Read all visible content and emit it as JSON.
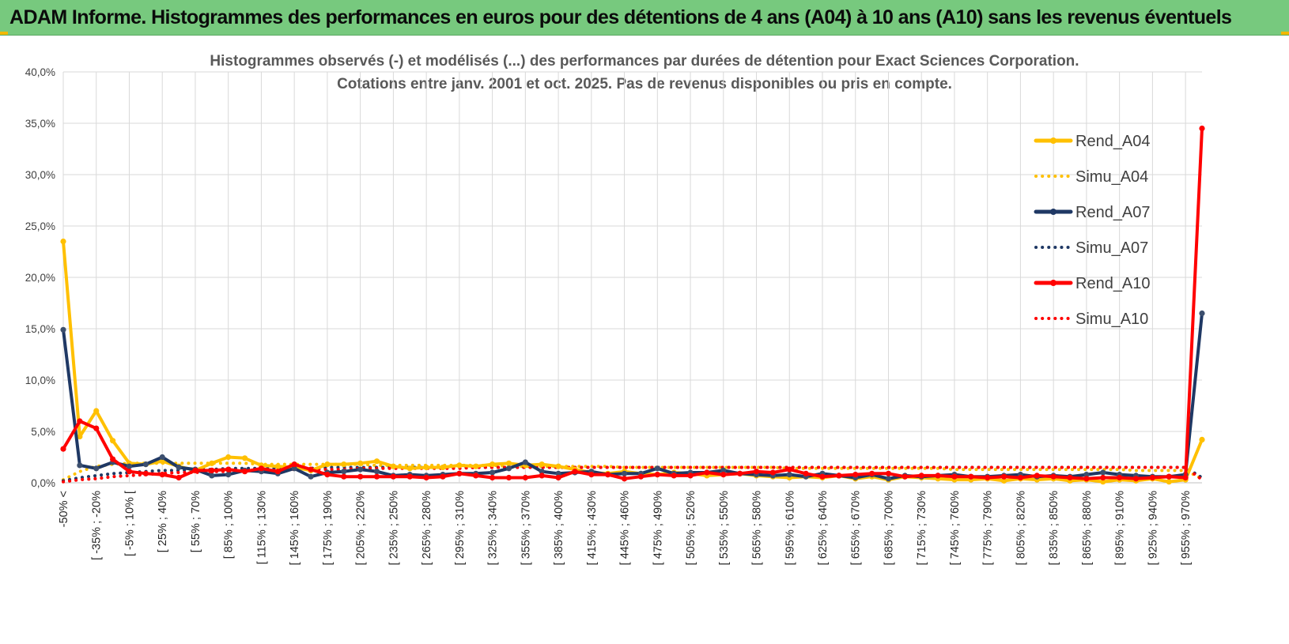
{
  "header": {
    "title": "ADAM Informe. Histogrammes des performances en euros pour des détentions de 4 ans (A04) à 10 ans (A10) sans les revenus éventuels"
  },
  "colors": {
    "banner": "#77c97e",
    "gold": "#ffc000",
    "navy": "#1f3864",
    "red": "#ff0000",
    "grid": "#d9d9d9"
  },
  "chart_data": {
    "type": "line",
    "title": "Histogrammes observés (-) et modélisés (...) des performances par durées de détention pour Exact Sciences Corporation.",
    "subtitle": "Cotations entre janv. 2001 et oct. 2025. Pas de revenus disponibles ou pris en compte.",
    "xlabel": "",
    "ylabel": "",
    "ylim": [
      0,
      40
    ],
    "y_ticks": [
      "0,0%",
      "5,0%",
      "10,0%",
      "15,0%",
      "20,0%",
      "25,0%",
      "30,0%",
      "35,0%",
      "40,0%"
    ],
    "y_unit": "%",
    "grid": true,
    "legend_position": "right",
    "x_tick_labels": [
      "-50% <",
      "[ -35% ; -20%",
      "[ -5% ; 10% [",
      "[ 25% ; 40%",
      "[ 55% ; 70%",
      "[ 85% ; 100%",
      "[ 115% ; 130%",
      "[ 145% ; 160%",
      "[ 175% ; 190%",
      "[ 205% ; 220%",
      "[ 235% ; 250%",
      "[ 265% ; 280%",
      "[ 295% ; 310%",
      "[ 325% ; 340%",
      "[ 355% ; 370%",
      "[ 385% ; 400%",
      "[ 415% ; 430%",
      "[ 445% ; 460%",
      "[ 475% ; 490%",
      "[ 505% ; 520%",
      "[ 535% ; 550%",
      "[ 565% ; 580%",
      "[ 595% ; 610%",
      "[ 625% ; 640%",
      "[ 655% ; 670%",
      "[ 685% ; 700%",
      "[ 715% ; 730%",
      "[ 745% ; 760%",
      "[ 775% ; 790%",
      "[ 805% ; 820%",
      "[ 835% ; 850%",
      "[ 865% ; 880%",
      "[ 895% ; 910%",
      "[ 925% ; 940%",
      "[ 955% ; 970%"
    ],
    "n_points": 70,
    "series": [
      {
        "name": "Rend_A04",
        "style": "solid",
        "color": "#ffc000",
        "markers": true,
        "values": [
          23.5,
          4.5,
          7.0,
          4.1,
          1.9,
          1.8,
          2.1,
          1.6,
          1.2,
          1.9,
          2.5,
          2.4,
          1.7,
          1.6,
          1.5,
          1.2,
          1.8,
          1.8,
          1.9,
          2.1,
          1.6,
          1.4,
          1.5,
          1.5,
          1.7,
          1.6,
          1.8,
          1.9,
          1.7,
          1.8,
          1.6,
          1.3,
          1.0,
          0.9,
          1.1,
          0.9,
          0.8,
          1.0,
          0.9,
          0.7,
          0.8,
          0.9,
          0.7,
          0.6,
          0.5,
          0.6,
          0.5,
          0.7,
          0.4,
          0.6,
          0.3,
          0.6,
          0.5,
          0.4,
          0.3,
          0.3,
          0.4,
          0.2,
          0.4,
          0.3,
          0.4,
          0.2,
          0.3,
          0.1,
          0.3,
          0.2,
          0.4,
          0.1,
          0.3,
          4.2
        ]
      },
      {
        "name": "Simu_A04",
        "style": "dotted",
        "color": "#ffc000",
        "markers": false,
        "values": [
          0.3,
          1.1,
          1.6,
          1.8,
          1.9,
          1.9,
          1.9,
          1.9,
          1.9,
          1.9,
          1.9,
          1.9,
          1.8,
          1.8,
          1.8,
          1.8,
          1.8,
          1.8,
          1.8,
          1.7,
          1.7,
          1.7,
          1.7,
          1.7,
          1.7,
          1.7,
          1.7,
          1.6,
          1.6,
          1.6,
          1.6,
          1.6,
          1.6,
          1.6,
          1.5,
          1.5,
          1.5,
          1.5,
          1.5,
          1.5,
          1.5,
          1.5,
          1.5,
          1.5,
          1.4,
          1.4,
          1.4,
          1.4,
          1.4,
          1.4,
          1.4,
          1.4,
          1.4,
          1.4,
          1.3,
          1.3,
          1.3,
          1.3,
          1.3,
          1.3,
          1.3,
          1.3,
          1.3,
          1.3,
          1.3,
          1.2,
          1.2,
          1.2,
          1.2,
          0.4
        ]
      },
      {
        "name": "Rend_A07",
        "style": "solid",
        "color": "#1f3864",
        "markers": true,
        "values": [
          14.9,
          1.7,
          1.4,
          2.0,
          1.6,
          1.8,
          2.5,
          1.5,
          1.3,
          0.7,
          0.8,
          1.2,
          1.1,
          0.9,
          1.4,
          0.6,
          1.0,
          1.1,
          1.3,
          1.1,
          0.7,
          0.8,
          0.7,
          0.8,
          0.9,
          0.9,
          1.0,
          1.4,
          2.0,
          1.1,
          0.9,
          1.0,
          1.1,
          0.8,
          0.9,
          0.9,
          1.4,
          0.9,
          1.0,
          1.0,
          1.2,
          0.9,
          0.8,
          0.7,
          0.8,
          0.6,
          0.9,
          0.7,
          0.5,
          0.8,
          0.4,
          0.7,
          0.6,
          0.7,
          0.8,
          0.6,
          0.6,
          0.7,
          0.8,
          0.6,
          0.7,
          0.6,
          0.8,
          1.0,
          0.8,
          0.7,
          0.6,
          0.6,
          0.8,
          16.5
        ]
      },
      {
        "name": "Simu_A07",
        "style": "dotted",
        "color": "#1f3864",
        "markers": false,
        "values": [
          0.2,
          0.5,
          0.7,
          0.9,
          1.0,
          1.1,
          1.2,
          1.2,
          1.3,
          1.3,
          1.4,
          1.4,
          1.4,
          1.4,
          1.4,
          1.4,
          1.5,
          1.5,
          1.5,
          1.5,
          1.5,
          1.5,
          1.5,
          1.5,
          1.5,
          1.5,
          1.5,
          1.5,
          1.5,
          1.5,
          1.5,
          1.5,
          1.5,
          1.5,
          1.5,
          1.5,
          1.5,
          1.5,
          1.5,
          1.5,
          1.5,
          1.5,
          1.5,
          1.5,
          1.5,
          1.5,
          1.5,
          1.5,
          1.5,
          1.5,
          1.5,
          1.5,
          1.5,
          1.5,
          1.5,
          1.5,
          1.5,
          1.5,
          1.5,
          1.5,
          1.5,
          1.5,
          1.5,
          1.5,
          1.5,
          1.5,
          1.5,
          1.5,
          1.5,
          0.5
        ]
      },
      {
        "name": "Rend_A10",
        "style": "solid",
        "color": "#ff0000",
        "markers": true,
        "values": [
          3.3,
          6.0,
          5.3,
          2.3,
          1.1,
          0.9,
          0.8,
          0.5,
          1.2,
          1.2,
          1.3,
          1.1,
          1.4,
          1.1,
          1.8,
          1.3,
          0.8,
          0.6,
          0.6,
          0.6,
          0.6,
          0.6,
          0.5,
          0.6,
          0.9,
          0.7,
          0.5,
          0.5,
          0.5,
          0.7,
          0.5,
          1.1,
          0.8,
          0.8,
          0.4,
          0.6,
          0.8,
          0.7,
          0.7,
          1.0,
          0.8,
          0.9,
          1.1,
          1.0,
          1.3,
          0.9,
          0.6,
          0.7,
          0.8,
          0.9,
          0.9,
          0.6,
          0.7,
          0.7,
          0.6,
          0.6,
          0.5,
          0.6,
          0.5,
          0.7,
          0.6,
          0.5,
          0.4,
          0.5,
          0.5,
          0.4,
          0.5,
          0.6,
          0.5,
          34.5
        ]
      },
      {
        "name": "Simu_A10",
        "style": "dotted",
        "color": "#ff0000",
        "markers": false,
        "values": [
          0.1,
          0.3,
          0.4,
          0.6,
          0.7,
          0.8,
          0.9,
          1.0,
          1.0,
          1.1,
          1.1,
          1.2,
          1.2,
          1.2,
          1.3,
          1.3,
          1.3,
          1.3,
          1.4,
          1.4,
          1.4,
          1.4,
          1.4,
          1.4,
          1.4,
          1.5,
          1.5,
          1.5,
          1.5,
          1.5,
          1.5,
          1.5,
          1.5,
          1.5,
          1.5,
          1.5,
          1.5,
          1.5,
          1.5,
          1.5,
          1.5,
          1.5,
          1.5,
          1.5,
          1.5,
          1.5,
          1.5,
          1.5,
          1.5,
          1.5,
          1.5,
          1.5,
          1.5,
          1.5,
          1.5,
          1.5,
          1.5,
          1.5,
          1.5,
          1.5,
          1.5,
          1.5,
          1.5,
          1.5,
          1.5,
          1.5,
          1.5,
          1.5,
          1.5,
          0.3
        ]
      }
    ]
  }
}
